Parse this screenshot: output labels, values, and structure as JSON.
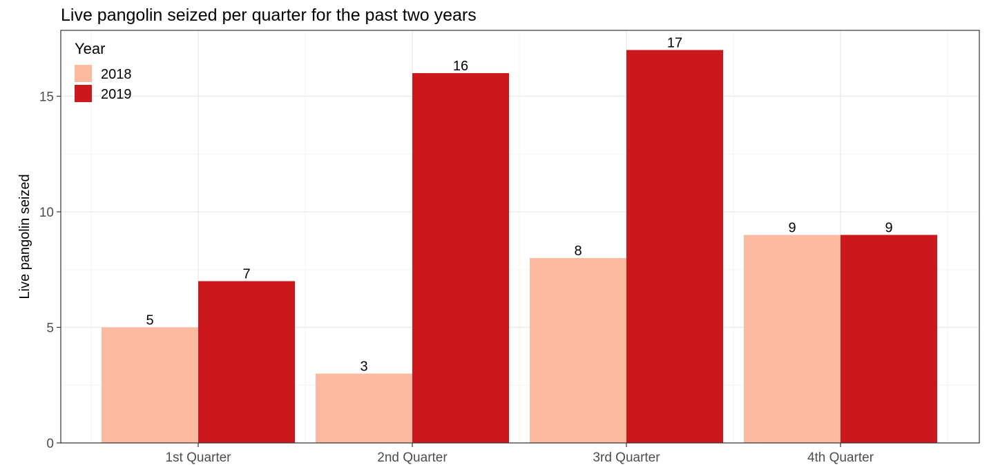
{
  "chart_data": {
    "type": "bar",
    "title": "Live pangolin seized per quarter for the past two years",
    "xlabel": "",
    "ylabel": "Live pangolin seized",
    "categories": [
      "1st Quarter",
      "2nd Quarter",
      "3rd Quarter",
      "4th Quarter"
    ],
    "series": [
      {
        "name": "2018",
        "values": [
          5,
          3,
          8,
          9
        ],
        "color": "#fcbba1"
      },
      {
        "name": "2019",
        "values": [
          7,
          16,
          17,
          9
        ],
        "color": "#cb181d"
      }
    ],
    "ylim": [
      0,
      17.85
    ],
    "yticks": [
      0,
      5,
      10,
      15
    ],
    "grid": true,
    "legend": {
      "title": "Year",
      "position": "top-left"
    }
  }
}
